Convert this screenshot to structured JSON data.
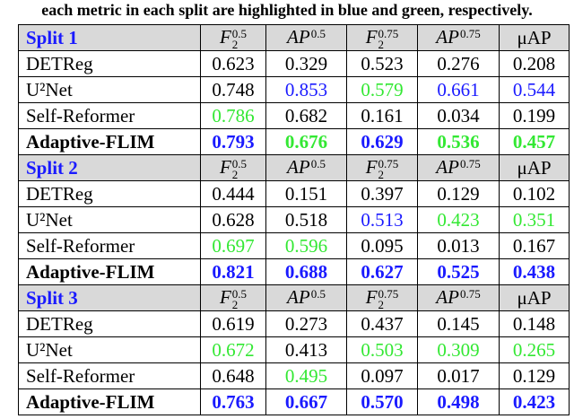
{
  "caption": "each metric in each split are highlighted in blue and green, respectively.",
  "table": {
    "columns": [
      {
        "base": "F",
        "sub": "2",
        "sup": "0.5"
      },
      {
        "base": "AP",
        "sup": "0.5"
      },
      {
        "base": "F",
        "sub": "2",
        "sup": "0.75"
      },
      {
        "base": "AP",
        "sup": "0.75"
      },
      {
        "base": "μAP"
      }
    ],
    "splits": [
      {
        "name": "Split 1",
        "rows": [
          {
            "method": "DETReg",
            "values": [
              "0.623",
              "0.329",
              "0.523",
              "0.276",
              "0.208"
            ],
            "colors": [
              "#000000",
              "#000000",
              "#000000",
              "#000000",
              "#000000"
            ]
          },
          {
            "method": "U²Net",
            "values": [
              "0.748",
              "0.853",
              "0.579",
              "0.661",
              "0.544"
            ],
            "colors": [
              "#000000",
              "#1a1aff",
              "#33e833",
              "#1a1aff",
              "#1a1aff"
            ]
          },
          {
            "method": "Self-Reformer",
            "values": [
              "0.786",
              "0.682",
              "0.161",
              "0.034",
              "0.199"
            ],
            "colors": [
              "#33e833",
              "#000000",
              "#000000",
              "#000000",
              "#000000"
            ]
          },
          {
            "method": "Adaptive-FLIM",
            "bold": true,
            "values": [
              "0.793",
              "0.676",
              "0.629",
              "0.536",
              "0.457"
            ],
            "colors": [
              "#1a1aff",
              "#33e833",
              "#1a1aff",
              "#33e833",
              "#33e833"
            ]
          }
        ]
      },
      {
        "name": "Split 2",
        "rows": [
          {
            "method": "DETReg",
            "values": [
              "0.444",
              "0.151",
              "0.397",
              "0.129",
              "0.102"
            ],
            "colors": [
              "#000000",
              "#000000",
              "#000000",
              "#000000",
              "#000000"
            ]
          },
          {
            "method": "U²Net",
            "values": [
              "0.628",
              "0.518",
              "0.513",
              "0.423",
              "0.351"
            ],
            "colors": [
              "#000000",
              "#000000",
              "#1a1aff",
              "#33e833",
              "#33e833"
            ]
          },
          {
            "method": "Self-Reformer",
            "values": [
              "0.697",
              "0.596",
              "0.095",
              "0.013",
              "0.167"
            ],
            "colors": [
              "#33e833",
              "#33e833",
              "#000000",
              "#000000",
              "#000000"
            ]
          },
          {
            "method": "Adaptive-FLIM",
            "bold": true,
            "values": [
              "0.821",
              "0.688",
              "0.627",
              "0.525",
              "0.438"
            ],
            "colors": [
              "#1a1aff",
              "#1a1aff",
              "#1a1aff",
              "#1a1aff",
              "#1a1aff"
            ]
          }
        ]
      },
      {
        "name": "Split 3",
        "rows": [
          {
            "method": "DETReg",
            "values": [
              "0.619",
              "0.273",
              "0.437",
              "0.145",
              "0.148"
            ],
            "colors": [
              "#000000",
              "#000000",
              "#000000",
              "#000000",
              "#000000"
            ]
          },
          {
            "method": "U²Net",
            "values": [
              "0.672",
              "0.413",
              "0.503",
              "0.309",
              "0.265"
            ],
            "colors": [
              "#33e833",
              "#000000",
              "#33e833",
              "#33e833",
              "#33e833"
            ]
          },
          {
            "method": "Self-Reformer",
            "values": [
              "0.648",
              "0.495",
              "0.097",
              "0.017",
              "0.129"
            ],
            "colors": [
              "#000000",
              "#33e833",
              "#000000",
              "#000000",
              "#000000"
            ]
          },
          {
            "method": "Adaptive-FLIM",
            "bold": true,
            "values": [
              "0.763",
              "0.667",
              "0.570",
              "0.498",
              "0.423"
            ],
            "colors": [
              "#1a1aff",
              "#1a1aff",
              "#1a1aff",
              "#1a1aff",
              "#1a1aff"
            ]
          }
        ]
      }
    ]
  }
}
